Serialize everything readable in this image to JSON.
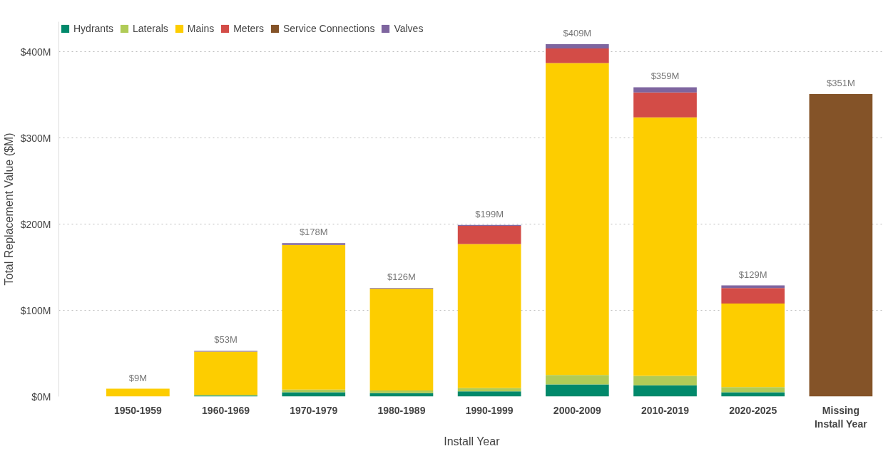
{
  "chart_data": {
    "type": "bar",
    "stacked": true,
    "xlabel": "Install Year",
    "ylabel": "Total Replacement Value ($M)",
    "categories": [
      "1950-1959",
      "1960-1969",
      "1970-1979",
      "1980-1989",
      "1990-1999",
      "2000-2009",
      "2010-2019",
      "2020-2025",
      "Missing\nInstall Year"
    ],
    "series": [
      {
        "name": "Hydrants",
        "color": "#01896b",
        "values": [
          null,
          1,
          5,
          4,
          6,
          14,
          13,
          5,
          null
        ]
      },
      {
        "name": "Laterals",
        "color": "#b0cb57",
        "values": [
          null,
          1,
          3,
          3,
          4,
          11,
          11,
          6,
          null
        ]
      },
      {
        "name": "Mains",
        "color": "#fdcd00",
        "values": [
          9,
          50,
          168,
          118,
          167,
          362,
          300,
          97,
          null
        ]
      },
      {
        "name": "Meters",
        "color": "#d34c47",
        "values": [
          null,
          null,
          null,
          null,
          21,
          17,
          29,
          18,
          null
        ]
      },
      {
        "name": "Service Connections",
        "color": "#845328",
        "values": [
          null,
          null,
          null,
          null,
          null,
          null,
          null,
          null,
          351
        ]
      },
      {
        "name": "Valves",
        "color": "#7e659f",
        "values": [
          null,
          1,
          2,
          1,
          1,
          5,
          6,
          3,
          null
        ]
      }
    ],
    "totals": [
      "$9M",
      "$53M",
      "$178M",
      "$126M",
      "$199M",
      "$409M",
      "$359M",
      "$129M",
      "$351M"
    ],
    "ylim": [
      0,
      435
    ],
    "yticks": [
      {
        "value": 0,
        "label": "$0M"
      },
      {
        "value": 100,
        "label": "$100M"
      },
      {
        "value": 200,
        "label": "$200M"
      },
      {
        "value": 300,
        "label": "$300M"
      },
      {
        "value": 400,
        "label": "$400M"
      }
    ],
    "grid": "y",
    "legend": "top left"
  }
}
